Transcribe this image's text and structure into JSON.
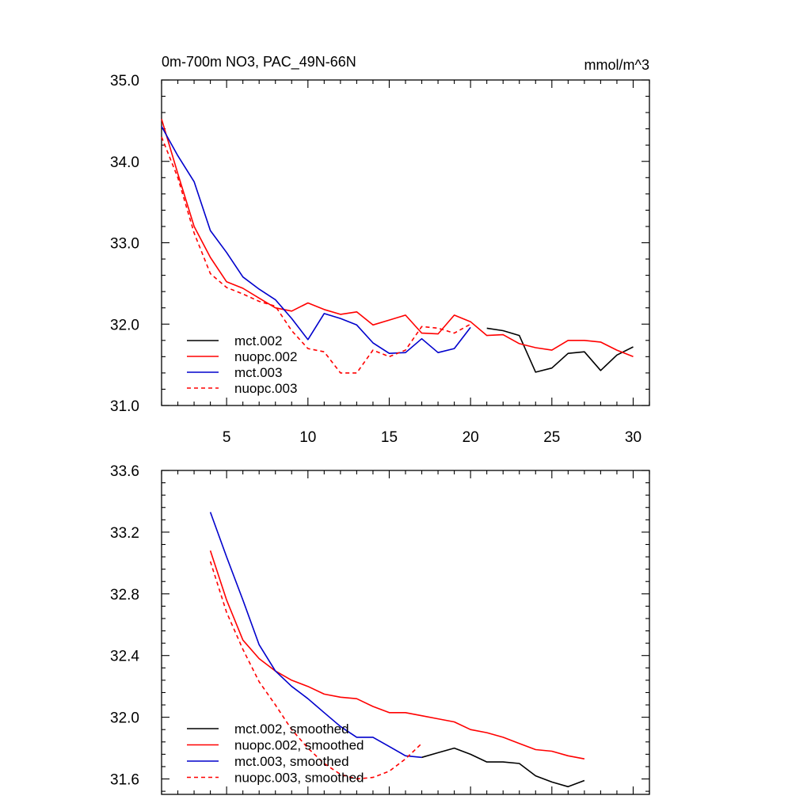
{
  "chart_data": [
    {
      "type": "line",
      "title": "0m-700m NO3, PAC_49N-66N",
      "units": "mmol/m^3",
      "xlim": [
        1,
        31
      ],
      "ylim": [
        31.0,
        35.0
      ],
      "xticks": [
        5,
        10,
        15,
        20,
        25,
        30
      ],
      "xtick_labels": [
        "5",
        "10",
        "15",
        "20",
        "25",
        "30"
      ],
      "yticks": [
        31.0,
        32.0,
        33.0,
        34.0,
        35.0
      ],
      "ytick_labels": [
        "31.0",
        "32.0",
        "33.0",
        "34.0",
        "35.0"
      ],
      "legend_position": "lower-left",
      "series": [
        {
          "name": "mct.002",
          "color": "#000000",
          "dash": "solid",
          "x": [
            21,
            22,
            23,
            24,
            25,
            26,
            27,
            28,
            29,
            30
          ],
          "values": [
            31.95,
            31.92,
            31.86,
            31.41,
            31.46,
            31.64,
            31.66,
            31.43,
            31.62,
            31.72
          ]
        },
        {
          "name": "nuopc.002",
          "color": "#ff0000",
          "dash": "solid",
          "x": [
            1,
            2,
            3,
            4,
            5,
            6,
            7,
            8,
            9,
            10,
            11,
            12,
            13,
            14,
            15,
            16,
            17,
            18,
            19,
            20,
            21,
            22,
            23,
            24,
            25,
            26,
            27,
            28,
            29,
            30
          ],
          "values": [
            34.52,
            33.85,
            33.2,
            32.82,
            32.52,
            32.44,
            32.32,
            32.2,
            32.16,
            32.26,
            32.18,
            32.12,
            32.15,
            31.99,
            32.05,
            32.11,
            31.89,
            31.88,
            32.11,
            32.03,
            31.86,
            31.87,
            31.76,
            31.71,
            31.68,
            31.8,
            31.8,
            31.78,
            31.68,
            31.6
          ]
        },
        {
          "name": "mct.003",
          "color": "#0000cc",
          "dash": "solid",
          "x": [
            1,
            2,
            3,
            4,
            5,
            6,
            7,
            8,
            9,
            10,
            11,
            12,
            13,
            14,
            15,
            16,
            17,
            18,
            19,
            20
          ],
          "values": [
            34.43,
            34.07,
            33.75,
            33.15,
            32.88,
            32.58,
            32.43,
            32.3,
            32.07,
            31.81,
            32.13,
            32.07,
            31.99,
            31.77,
            31.64,
            31.65,
            31.82,
            31.65,
            31.7,
            31.96
          ]
        },
        {
          "name": "nuopc.003",
          "color": "#ff0000",
          "dash": "dashed",
          "x": [
            1,
            2,
            3,
            4,
            5,
            6,
            7,
            8,
            9,
            10,
            11,
            12,
            13,
            14,
            15,
            16,
            17,
            18,
            19,
            20
          ],
          "values": [
            34.3,
            33.8,
            33.12,
            32.62,
            32.45,
            32.37,
            32.28,
            32.22,
            31.92,
            31.7,
            31.66,
            31.4,
            31.4,
            31.68,
            31.6,
            31.68,
            31.97,
            31.95,
            31.89,
            32.0
          ]
        }
      ]
    },
    {
      "type": "line",
      "xlim": [
        1,
        31
      ],
      "ylim": [
        31.5,
        33.6
      ],
      "xticks": [
        5,
        10,
        15,
        20,
        25,
        30
      ],
      "yticks": [
        31.6,
        32.0,
        32.4,
        32.8,
        33.2,
        33.6
      ],
      "ytick_labels": [
        "31.6",
        "32.0",
        "32.4",
        "32.8",
        "33.2",
        "33.6"
      ],
      "legend_position": "lower-left",
      "series": [
        {
          "name": "mct.002, smoothed",
          "color": "#000000",
          "dash": "solid",
          "x": [
            17,
            18,
            19,
            20,
            21,
            22,
            23,
            24,
            25,
            26,
            27
          ],
          "values": [
            31.74,
            31.77,
            31.8,
            31.76,
            31.71,
            31.71,
            31.7,
            31.62,
            31.58,
            31.55,
            31.59
          ]
        },
        {
          "name": "nuopc.002, smoothed",
          "color": "#ff0000",
          "dash": "solid",
          "x": [
            4,
            5,
            6,
            7,
            8,
            9,
            10,
            11,
            12,
            13,
            14,
            15,
            16,
            17,
            18,
            19,
            20,
            21,
            22,
            23,
            24,
            25,
            26,
            27
          ],
          "values": [
            33.08,
            32.76,
            32.5,
            32.38,
            32.3,
            32.24,
            32.2,
            32.15,
            32.13,
            32.12,
            32.07,
            32.03,
            32.03,
            32.01,
            31.99,
            31.97,
            31.92,
            31.9,
            31.87,
            31.83,
            31.79,
            31.78,
            31.75,
            31.73
          ]
        },
        {
          "name": "mct.003, smoothed",
          "color": "#0000cc",
          "dash": "solid",
          "x": [
            4,
            5,
            6,
            7,
            8,
            9,
            10,
            11,
            12,
            13,
            14,
            15,
            16,
            17
          ],
          "values": [
            33.33,
            33.04,
            32.76,
            32.47,
            32.3,
            32.2,
            32.12,
            32.03,
            31.94,
            31.87,
            31.87,
            31.81,
            31.75,
            31.74
          ]
        },
        {
          "name": "nuopc.003, smoothed",
          "color": "#ff0000",
          "dash": "dashed",
          "x": [
            4,
            5,
            6,
            7,
            8,
            9,
            10,
            11,
            12,
            13,
            14,
            15,
            16,
            17
          ],
          "values": [
            33.01,
            32.68,
            32.44,
            32.23,
            32.08,
            31.92,
            31.8,
            31.7,
            31.63,
            31.6,
            31.61,
            31.65,
            31.73,
            31.83
          ]
        }
      ]
    }
  ]
}
